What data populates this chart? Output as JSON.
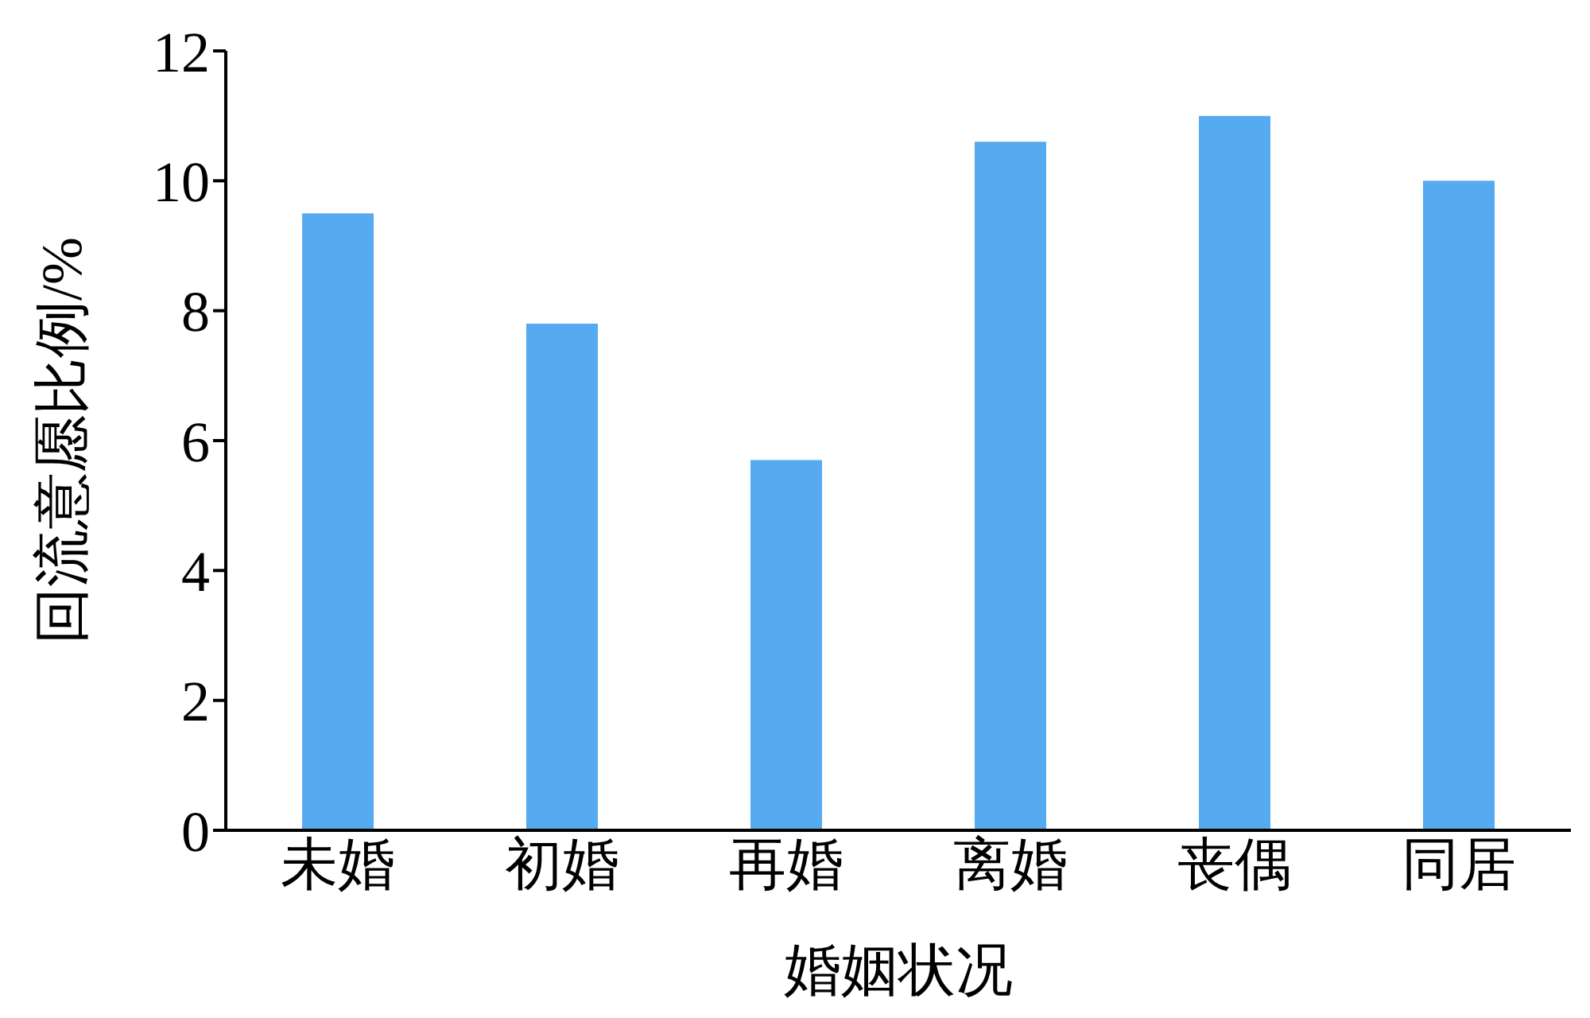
{
  "chart_data": {
    "type": "bar",
    "xlabel": "婚姻状况",
    "ylabel": "回流意愿比例/%",
    "categories": [
      "未婚",
      "初婚",
      "再婚",
      "离婚",
      "丧偶",
      "同居"
    ],
    "values": [
      9.5,
      7.8,
      5.7,
      10.6,
      11.0,
      10.0
    ],
    "color": "#55aaf0",
    "ylim": [
      0,
      12
    ],
    "yticks": [
      0,
      2,
      4,
      6,
      8,
      10,
      12
    ],
    "grid": false
  }
}
